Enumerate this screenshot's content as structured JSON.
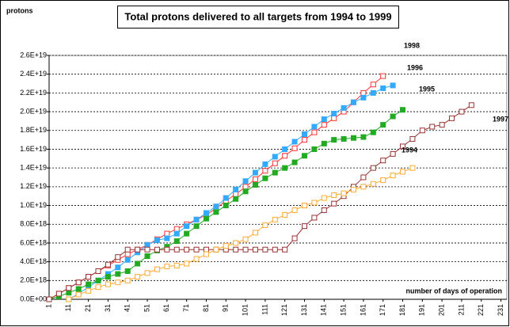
{
  "chart_data": {
    "type": "line",
    "title": "Total protons delivered to all targets from 1994 to 1999",
    "y_label": "protons",
    "x_label": "number of days of operation",
    "xlim": [
      1,
      234
    ],
    "xticks": [
      1,
      11,
      21,
      31,
      41,
      51,
      61,
      71,
      81,
      91,
      101,
      111,
      121,
      131,
      141,
      151,
      161,
      171,
      181,
      191,
      201,
      211,
      221,
      231
    ],
    "ylim": [
      0,
      2.6e+19
    ],
    "yticks": [
      {
        "value": 0,
        "label": "0.0E+00"
      },
      {
        "value": 2e+18,
        "label": "2.0E+18"
      },
      {
        "value": 4e+18,
        "label": "4.0E+18"
      },
      {
        "value": 6e+18,
        "label": "6.0E+18"
      },
      {
        "value": 8e+18,
        "label": "8.0E+18"
      },
      {
        "value": 1e+19,
        "label": "1.0E+19"
      },
      {
        "value": 1.2e+19,
        "label": "1.2E+19"
      },
      {
        "value": 1.4e+19,
        "label": "1.4E+19"
      },
      {
        "value": 1.6e+19,
        "label": "1.6E+19"
      },
      {
        "value": 1.8e+19,
        "label": "1.8E+19"
      },
      {
        "value": 2e+19,
        "label": "2.0E+19"
      },
      {
        "value": 2.2e+19,
        "label": "2.2E+19"
      },
      {
        "value": 2.4e+19,
        "label": "2.4E+19"
      },
      {
        "value": 2.6e+19,
        "label": "2.6E+19"
      }
    ],
    "grid": true,
    "x": [
      1,
      6,
      11,
      16,
      21,
      26,
      31,
      36,
      41,
      46,
      51,
      56,
      61,
      66,
      71,
      76,
      81,
      86,
      91,
      96,
      101,
      106,
      111,
      116,
      121,
      126,
      131,
      136,
      141,
      146,
      151,
      156,
      161,
      166,
      171,
      176,
      181,
      186,
      191,
      196,
      201,
      206,
      211,
      216,
      221
    ],
    "series": [
      {
        "name": "1998",
        "color": "#ff3333",
        "filled": false,
        "values": [
          0,
          6e+17,
          1.2e+18,
          1.8e+18,
          2.4e+18,
          3e+18,
          3.6e+18,
          4.2e+18,
          4.8e+18,
          5.3e+18,
          5.8e+18,
          6.4e+18,
          7e+18,
          7.5e+18,
          8e+18,
          8.5e+18,
          9e+18,
          9.7e+18,
          1.05e+19,
          1.12e+19,
          1.2e+19,
          1.28e+19,
          1.37e+19,
          1.45e+19,
          1.53e+19,
          1.61e+19,
          1.7e+19,
          1.78e+19,
          1.86e+19,
          1.93e+19,
          2e+19,
          2.1e+19,
          2.2e+19,
          2.29e+19,
          2.38e+19,
          null,
          null,
          null,
          null,
          null,
          null,
          null,
          null,
          null,
          null
        ]
      },
      {
        "name": "1996",
        "color": "#33aaff",
        "filled": true,
        "values": [
          null,
          null,
          0,
          6e+17,
          1.3e+18,
          2e+18,
          2.7e+18,
          3.4e+18,
          4.2e+18,
          5e+18,
          5.8e+18,
          6.3e+18,
          6.5e+18,
          7e+18,
          7.8e+18,
          8.5e+18,
          9.2e+18,
          9.9e+18,
          1.08e+19,
          1.17e+19,
          1.26e+19,
          1.35e+19,
          1.44e+19,
          1.52e+19,
          1.6e+19,
          1.68e+19,
          1.76e+19,
          1.84e+19,
          1.92e+19,
          1.98e+19,
          2.04e+19,
          2.1e+19,
          2.15e+19,
          2.2e+19,
          2.25e+19,
          2.28e+19,
          null,
          null,
          null,
          null,
          null,
          null,
          null,
          null,
          null
        ]
      },
      {
        "name": "1995",
        "color": "#22aa22",
        "filled": true,
        "values": [
          0,
          3e+17,
          7e+17,
          1.1e+18,
          1.6e+18,
          2e+18,
          2.4e+18,
          2.7e+18,
          3e+18,
          3.8e+18,
          4.6e+18,
          5.2e+18,
          5.6e+18,
          6.2e+18,
          7e+18,
          7.8e+18,
          8.6e+18,
          9.3e+18,
          1e+19,
          1.07e+19,
          1.15e+19,
          1.22e+19,
          1.29e+19,
          1.35e+19,
          1.4e+19,
          1.46e+19,
          1.53e+19,
          1.6e+19,
          1.66e+19,
          1.7e+19,
          1.71e+19,
          1.72e+19,
          1.73e+19,
          1.78e+19,
          1.86e+19,
          1.95e+19,
          2.02e+19,
          null,
          null,
          null,
          null,
          null,
          null,
          null,
          null
        ]
      },
      {
        "name": "1997",
        "color": "#993333",
        "filled": false,
        "values": [
          0,
          6e+17,
          1.2e+18,
          1.8e+18,
          2.4e+18,
          3e+18,
          3.7e+18,
          4.5e+18,
          5.3e+18,
          5.3e+18,
          5.3e+18,
          5.3e+18,
          5.3e+18,
          5.3e+18,
          5.3e+18,
          5.3e+18,
          5.3e+18,
          5.3e+18,
          5.3e+18,
          5.3e+18,
          5.3e+18,
          5.3e+18,
          5.3e+18,
          5.3e+18,
          5.3e+18,
          6.5e+18,
          7.8e+18,
          8.7e+18,
          9.5e+18,
          1.02e+19,
          1.1e+19,
          1.2e+19,
          1.3e+19,
          1.4e+19,
          1.48e+19,
          1.55e+19,
          1.63e+19,
          1.71e+19,
          1.8e+19,
          1.84e+19,
          1.86e+19,
          1.93e+19,
          2e+19,
          2.07e+19,
          null
        ]
      },
      {
        "name": "1994",
        "color": "#ffaa33",
        "filled": false,
        "values": [
          null,
          null,
          0,
          5e+17,
          9e+17,
          1.3e+18,
          1.6e+18,
          1.8e+18,
          2e+18,
          2.4e+18,
          2.8e+18,
          3.2e+18,
          3.5e+18,
          3.6e+18,
          3.8e+18,
          4.3e+18,
          4.8e+18,
          5.3e+18,
          5.7e+18,
          6e+18,
          6.4e+18,
          7.1e+18,
          7.9e+18,
          8.5e+18,
          9e+18,
          9.5e+18,
          1e+19,
          1.03e+19,
          1.08e+19,
          1.11e+19,
          1.13e+19,
          1.17e+19,
          1.2e+19,
          1.23e+19,
          1.27e+19,
          1.32e+19,
          1.36e+19,
          1.4e+19,
          null,
          null,
          null,
          null,
          null,
          null,
          null
        ]
      }
    ]
  }
}
